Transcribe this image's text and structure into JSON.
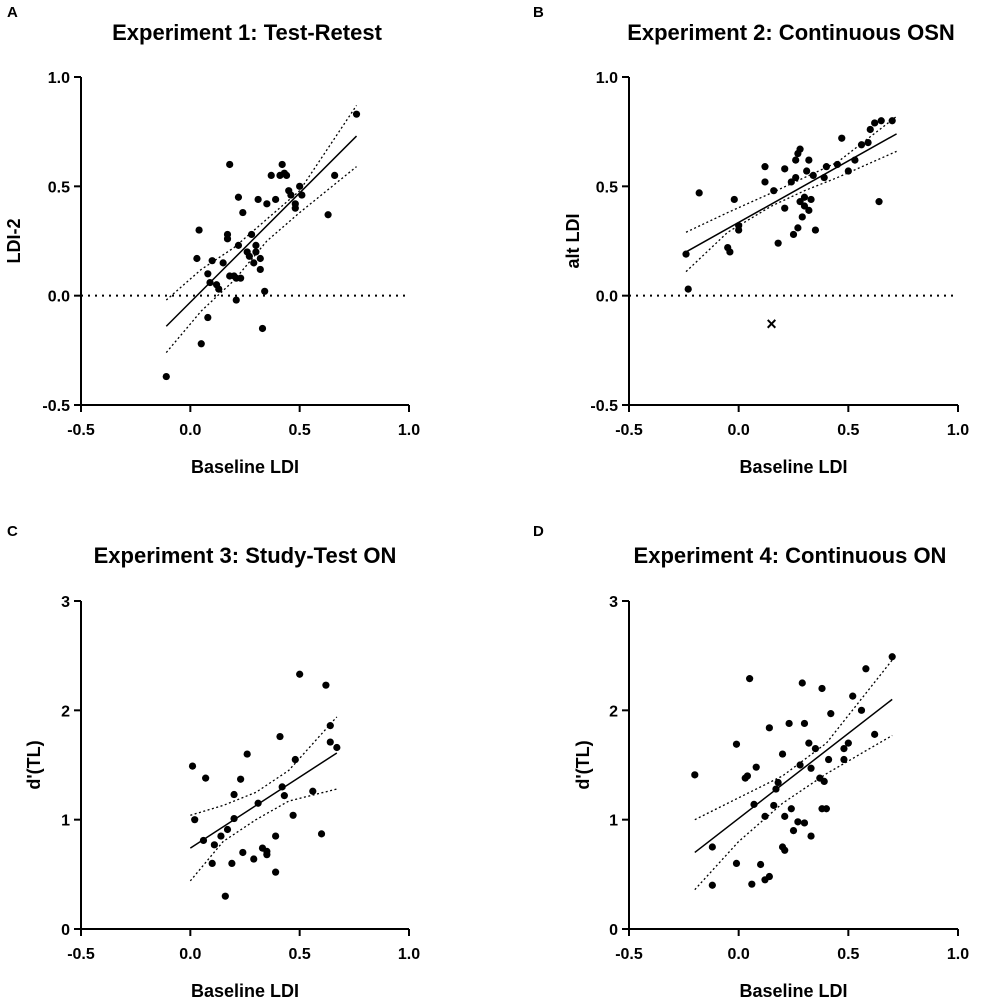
{
  "chart_data": [
    {
      "panel_letter": "A",
      "type": "scatter",
      "title": "Experiment 1: Test-Retest",
      "xlabel": "Baseline LDI",
      "ylabel": "LDI-2",
      "xlim": [
        -0.5,
        1.0
      ],
      "ylim": [
        -0.5,
        1.0
      ],
      "xticks": [
        "-0.5",
        "0.0",
        "0.5",
        "1.0"
      ],
      "yticks": [
        "-0.5",
        "0.0",
        "0.5",
        "1.0"
      ],
      "zero_line": true,
      "regression": {
        "x": [
          -0.11,
          0.76
        ],
        "y": [
          -0.14,
          0.73
        ]
      },
      "ci_lower": {
        "x": [
          -0.11,
          0.05,
          0.2,
          0.35,
          0.5,
          0.76
        ],
        "y": [
          -0.26,
          -0.07,
          0.07,
          0.25,
          0.38,
          0.59
        ]
      },
      "ci_upper": {
        "x": [
          -0.11,
          0.05,
          0.2,
          0.35,
          0.5,
          0.76
        ],
        "y": [
          -0.02,
          0.12,
          0.22,
          0.35,
          0.48,
          0.87
        ]
      },
      "points": {
        "x": [
          -0.11,
          0.03,
          0.04,
          0.05,
          0.08,
          0.08,
          0.09,
          0.1,
          0.12,
          0.13,
          0.15,
          0.17,
          0.17,
          0.18,
          0.18,
          0.2,
          0.21,
          0.21,
          0.22,
          0.22,
          0.23,
          0.24,
          0.26,
          0.27,
          0.28,
          0.29,
          0.3,
          0.3,
          0.31,
          0.32,
          0.32,
          0.33,
          0.34,
          0.35,
          0.37,
          0.39,
          0.41,
          0.42,
          0.43,
          0.44,
          0.45,
          0.46,
          0.48,
          0.48,
          0.5,
          0.51,
          0.63,
          0.66,
          0.76
        ],
        "y": [
          -0.37,
          0.17,
          0.3,
          -0.22,
          0.1,
          -0.1,
          0.06,
          0.16,
          0.05,
          0.03,
          0.15,
          0.28,
          0.26,
          0.6,
          0.09,
          0.09,
          0.08,
          -0.02,
          0.45,
          0.23,
          0.08,
          0.38,
          0.2,
          0.18,
          0.28,
          0.15,
          0.23,
          0.2,
          0.44,
          0.17,
          0.12,
          -0.15,
          0.02,
          0.42,
          0.55,
          0.44,
          0.55,
          0.6,
          0.56,
          0.55,
          0.48,
          0.46,
          0.4,
          0.42,
          0.5,
          0.46,
          0.37,
          0.55,
          0.83
        ]
      }
    },
    {
      "panel_letter": "B",
      "type": "scatter",
      "title": "Experiment 2: Continuous OSN",
      "xlabel": "Baseline LDI",
      "ylabel": "alt LDI",
      "xlim": [
        -0.5,
        1.0
      ],
      "ylim": [
        -0.5,
        1.0
      ],
      "xticks": [
        "-0.5",
        "0.0",
        "0.5",
        "1.0"
      ],
      "yticks": [
        "-0.5",
        "0.0",
        "0.5",
        "1.0"
      ],
      "zero_line": true,
      "regression": {
        "x": [
          -0.24,
          0.72
        ],
        "y": [
          0.2,
          0.74
        ]
      },
      "ci_lower": {
        "x": [
          -0.24,
          -0.05,
          0.15,
          0.3,
          0.45,
          0.72
        ],
        "y": [
          0.11,
          0.29,
          0.41,
          0.48,
          0.54,
          0.66
        ]
      },
      "ci_upper": {
        "x": [
          -0.24,
          -0.05,
          0.15,
          0.3,
          0.45,
          0.72
        ],
        "y": [
          0.29,
          0.38,
          0.47,
          0.54,
          0.61,
          0.82
        ]
      },
      "outlier_marker": {
        "symbol": "×",
        "x": 0.15,
        "y": -0.13
      },
      "points": {
        "x": [
          -0.24,
          -0.23,
          -0.18,
          -0.05,
          -0.04,
          -0.02,
          0.0,
          0.0,
          0.12,
          0.12,
          0.16,
          0.18,
          0.21,
          0.21,
          0.24,
          0.25,
          0.26,
          0.26,
          0.27,
          0.27,
          0.28,
          0.28,
          0.29,
          0.3,
          0.3,
          0.31,
          0.32,
          0.32,
          0.33,
          0.34,
          0.35,
          0.39,
          0.4,
          0.45,
          0.47,
          0.5,
          0.53,
          0.56,
          0.59,
          0.6,
          0.62,
          0.64,
          0.65,
          0.7
        ],
        "y": [
          0.19,
          0.03,
          0.47,
          0.22,
          0.2,
          0.44,
          0.3,
          0.32,
          0.59,
          0.52,
          0.48,
          0.24,
          0.4,
          0.58,
          0.52,
          0.28,
          0.62,
          0.54,
          0.65,
          0.31,
          0.43,
          0.67,
          0.36,
          0.45,
          0.41,
          0.57,
          0.62,
          0.39,
          0.44,
          0.55,
          0.3,
          0.54,
          0.59,
          0.6,
          0.72,
          0.57,
          0.62,
          0.69,
          0.7,
          0.76,
          0.79,
          0.43,
          0.8,
          0.8
        ]
      }
    },
    {
      "panel_letter": "C",
      "type": "scatter",
      "title": "Experiment 3: Study-Test  ON",
      "xlabel": "Baseline LDI",
      "ylabel": "d'(TL)",
      "xlim": [
        -0.5,
        1.0
      ],
      "ylim": [
        0,
        3
      ],
      "xticks": [
        "-0.5",
        "0.0",
        "0.5",
        "1.0"
      ],
      "yticks": [
        "0",
        "1",
        "2",
        "3"
      ],
      "zero_line": false,
      "regression": {
        "x": [
          0.0,
          0.67
        ],
        "y": [
          0.74,
          1.61
        ]
      },
      "ci_lower": {
        "x": [
          0.0,
          0.15,
          0.3,
          0.45,
          0.67
        ],
        "y": [
          0.44,
          0.8,
          1.0,
          1.17,
          1.28
        ]
      },
      "ci_upper": {
        "x": [
          0.0,
          0.15,
          0.3,
          0.45,
          0.67
        ],
        "y": [
          1.04,
          1.13,
          1.25,
          1.45,
          1.94
        ]
      },
      "points": {
        "x": [
          0.01,
          0.02,
          0.06,
          0.07,
          0.1,
          0.11,
          0.14,
          0.16,
          0.17,
          0.19,
          0.2,
          0.2,
          0.23,
          0.24,
          0.26,
          0.29,
          0.31,
          0.33,
          0.35,
          0.35,
          0.39,
          0.39,
          0.41,
          0.42,
          0.43,
          0.47,
          0.48,
          0.5,
          0.56,
          0.6,
          0.62,
          0.64,
          0.64,
          0.67
        ],
        "y": [
          1.49,
          1.0,
          0.81,
          1.38,
          0.6,
          0.77,
          0.85,
          0.3,
          0.91,
          0.6,
          1.23,
          1.01,
          1.37,
          0.7,
          1.6,
          0.64,
          1.15,
          0.74,
          0.71,
          0.68,
          0.52,
          0.85,
          1.76,
          1.3,
          1.22,
          1.04,
          1.55,
          2.33,
          1.26,
          0.87,
          2.23,
          1.86,
          1.71,
          1.66
        ]
      }
    },
    {
      "panel_letter": "D",
      "type": "scatter",
      "title": "Experiment 4: Continuous  ON",
      "xlabel": "Baseline LDI",
      "ylabel": "d'(TL)",
      "xlim": [
        -0.5,
        1.0
      ],
      "ylim": [
        0,
        3
      ],
      "xticks": [
        "-0.5",
        "0.0",
        "0.5",
        "1.0"
      ],
      "yticks": [
        "0",
        "1",
        "2",
        "3"
      ],
      "zero_line": false,
      "regression": {
        "x": [
          -0.2,
          0.7
        ],
        "y": [
          0.7,
          2.1
        ]
      },
      "ci_lower": {
        "x": [
          -0.2,
          0.0,
          0.2,
          0.4,
          0.7
        ],
        "y": [
          0.36,
          0.8,
          1.15,
          1.42,
          1.77
        ]
      },
      "ci_upper": {
        "x": [
          -0.2,
          0.0,
          0.2,
          0.4,
          0.7
        ],
        "y": [
          1.0,
          1.2,
          1.4,
          1.7,
          2.46
        ]
      },
      "points": {
        "x": [
          -0.2,
          -0.12,
          -0.12,
          -0.01,
          -0.01,
          0.03,
          0.04,
          0.05,
          0.06,
          0.07,
          0.08,
          0.1,
          0.12,
          0.12,
          0.14,
          0.14,
          0.16,
          0.17,
          0.18,
          0.2,
          0.2,
          0.21,
          0.21,
          0.23,
          0.24,
          0.25,
          0.27,
          0.28,
          0.29,
          0.3,
          0.3,
          0.32,
          0.33,
          0.33,
          0.35,
          0.37,
          0.38,
          0.38,
          0.39,
          0.4,
          0.41,
          0.42,
          0.48,
          0.48,
          0.5,
          0.52,
          0.56,
          0.58,
          0.62,
          0.7
        ],
        "y": [
          1.41,
          0.75,
          0.4,
          0.6,
          1.69,
          1.38,
          1.4,
          2.29,
          0.41,
          1.14,
          1.48,
          0.59,
          1.03,
          0.45,
          0.48,
          1.84,
          1.13,
          1.28,
          1.34,
          0.75,
          1.6,
          1.03,
          0.72,
          1.88,
          1.1,
          0.9,
          0.98,
          1.5,
          2.25,
          0.97,
          1.88,
          1.7,
          1.47,
          0.85,
          1.65,
          1.38,
          1.1,
          2.2,
          1.35,
          1.1,
          1.55,
          1.97,
          1.65,
          1.55,
          1.7,
          2.13,
          2.0,
          2.38,
          1.78,
          2.49
        ]
      }
    }
  ]
}
